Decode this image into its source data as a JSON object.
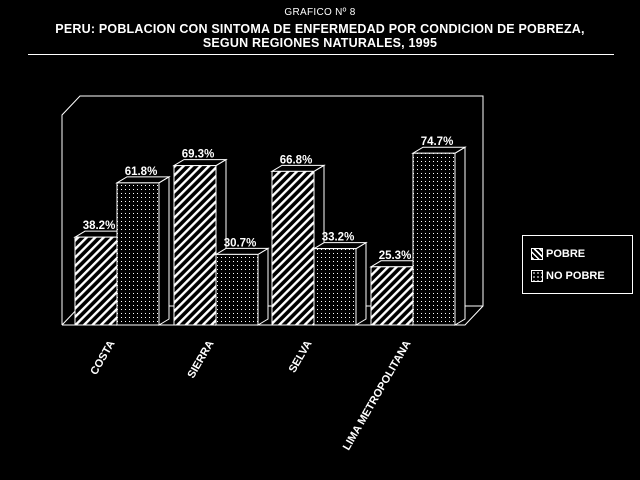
{
  "header": {
    "figure_label": "GRAFICO Nº 8",
    "title_line1": "PERU: POBLACION CON SINTOMA DE ENFERMEDAD POR CONDICION DE POBREZA,",
    "title_line2": "SEGUN REGIONES NATURALES, 1995"
  },
  "legend": {
    "pobre": "POBRE",
    "no_pobre": "NO POBRE"
  },
  "colors": {
    "background": "#000000",
    "foreground": "#ffffff"
  },
  "chart_data": {
    "type": "bar",
    "style": "3d-grouped",
    "categories": [
      "COSTA",
      "SIERRA",
      "SELVA",
      "LIMA METROPOLITANA"
    ],
    "series": [
      {
        "name": "POBRE",
        "values": [
          38.2,
          69.3,
          66.8,
          25.3
        ],
        "labels": [
          "38.2%",
          "69.3%",
          "66.8%",
          "25.3%"
        ],
        "fill": "hatch"
      },
      {
        "name": "NO POBRE",
        "values": [
          61.8,
          30.7,
          33.2,
          74.7
        ],
        "labels": [
          "61.8%",
          "30.7%",
          "33.2%",
          "74.7%"
        ],
        "fill": "dots"
      }
    ],
    "ylim": [
      0,
      100
    ],
    "grid": false,
    "legend_position": "right"
  }
}
